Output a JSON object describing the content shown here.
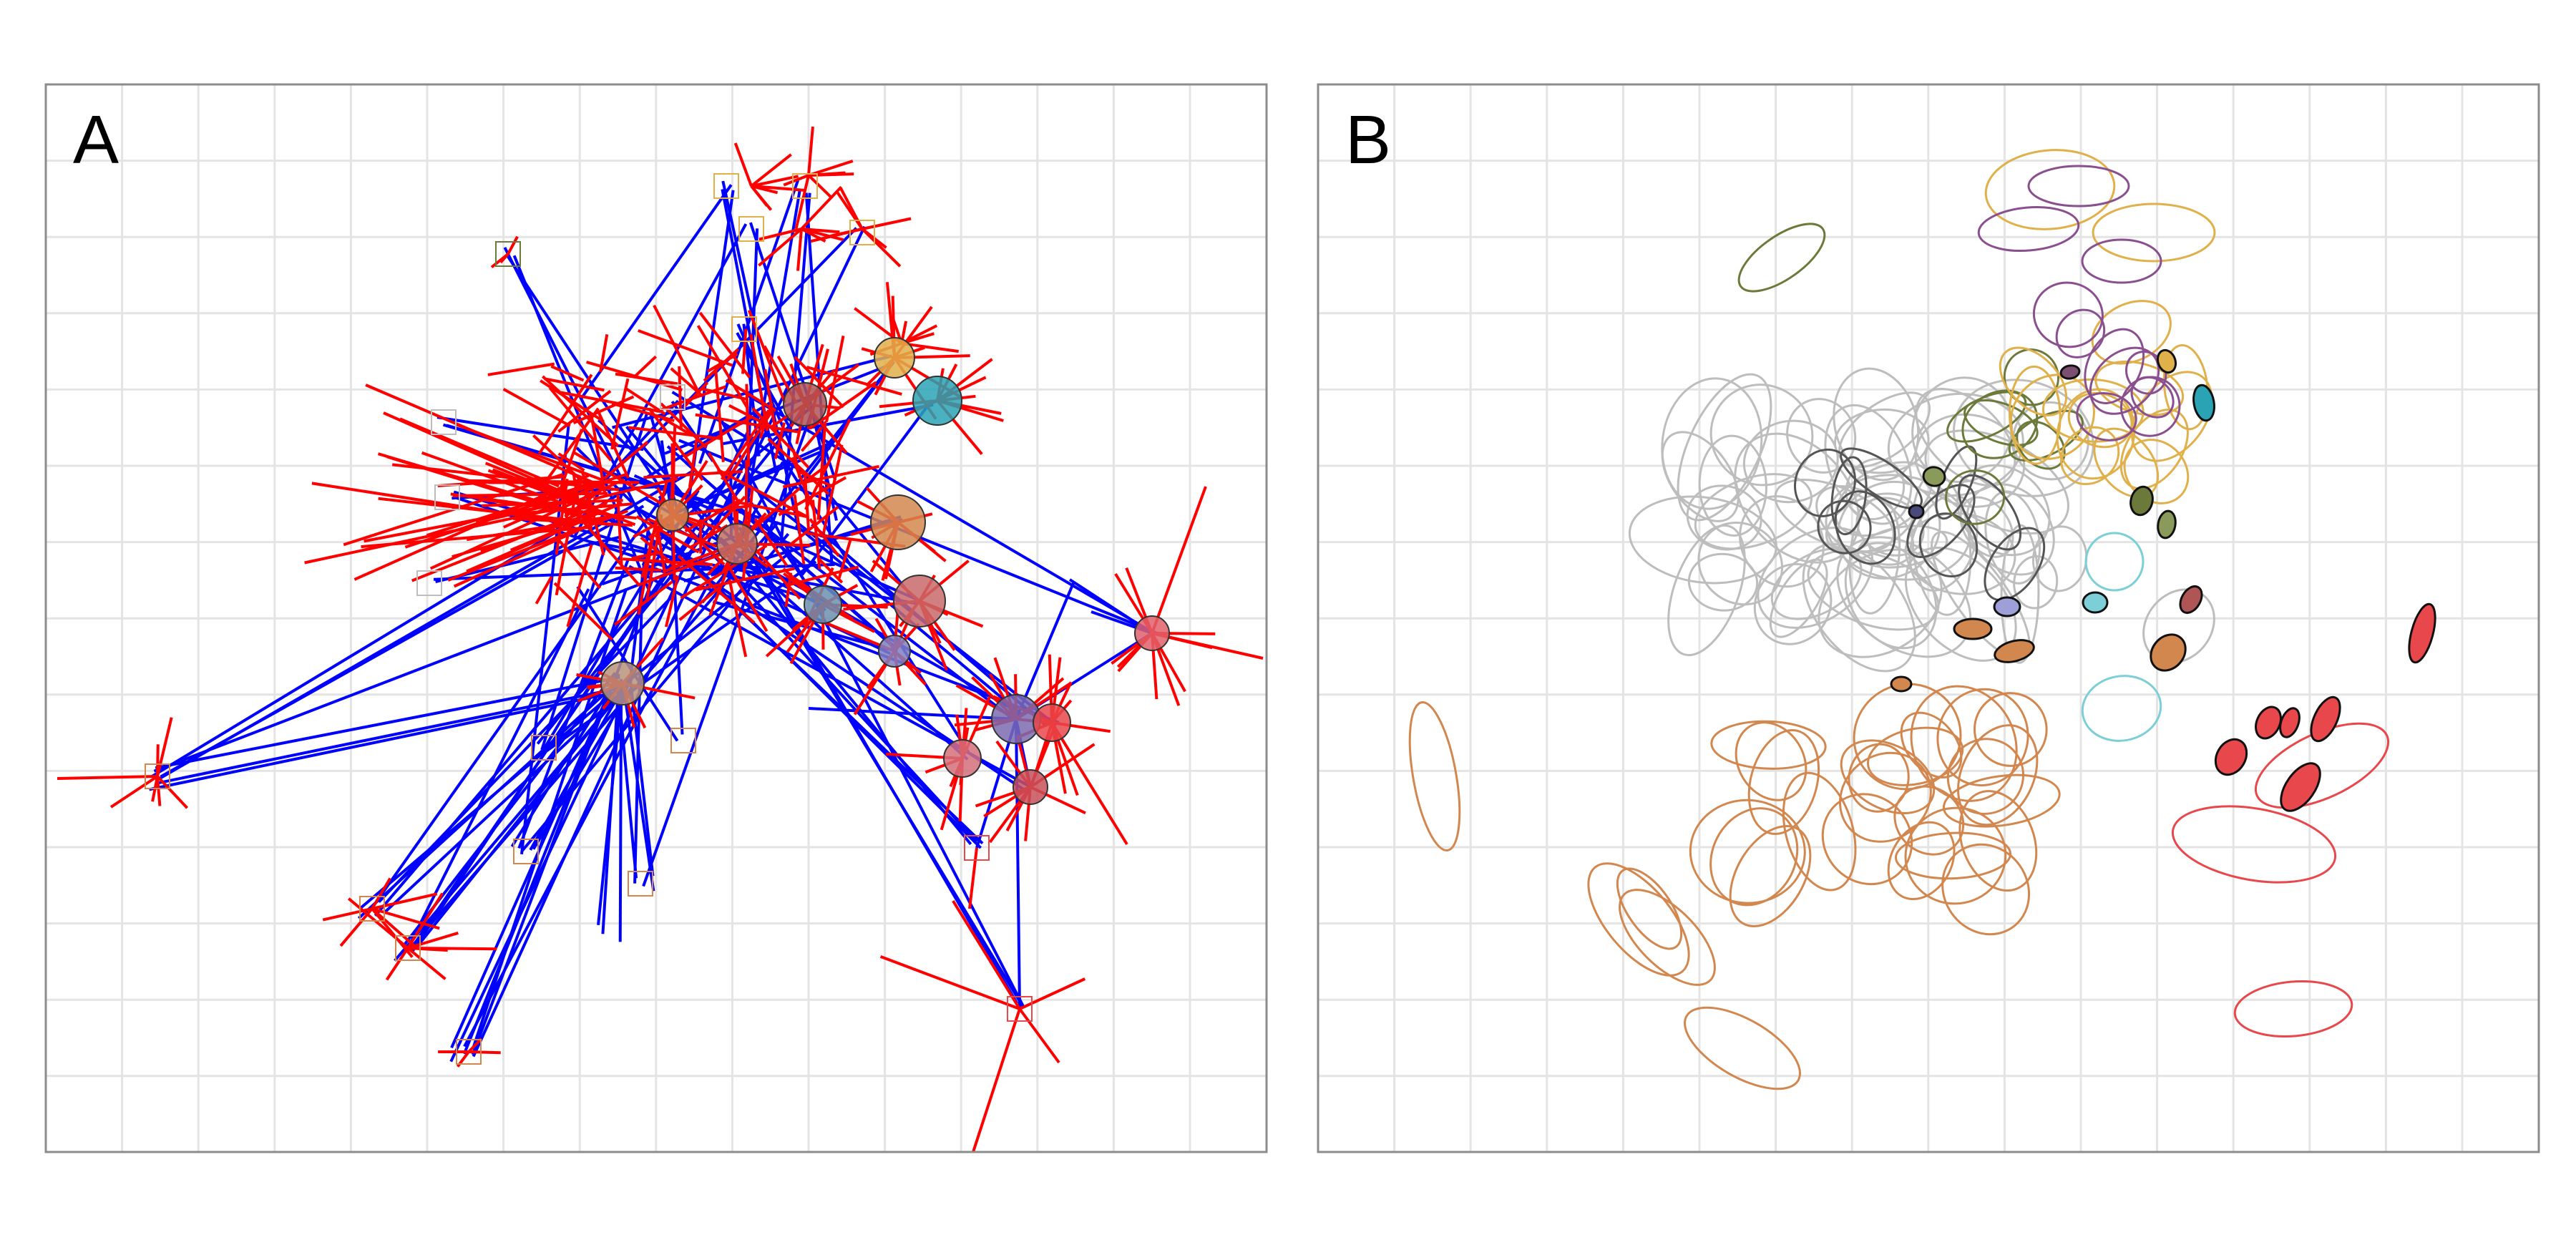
{
  "panels": [
    {
      "label": "A"
    },
    {
      "label": "B"
    }
  ],
  "colors": {
    "grid": "#e4e4e4",
    "frame": "#8c8c8c",
    "edge_in": "#0000ff",
    "edge_out": "#ff0000",
    "gray": "#bdbdbd",
    "dark_gray": "#555555",
    "orange": "#d2874f",
    "gold": "#e0b04a",
    "purple": "#8a4f8f",
    "olive": "#6b7a3a",
    "teal": "#2aa3b5",
    "light_teal": "#7ccfd6",
    "red": "#e8484b",
    "lavender": "#9e9ed8"
  }
}
